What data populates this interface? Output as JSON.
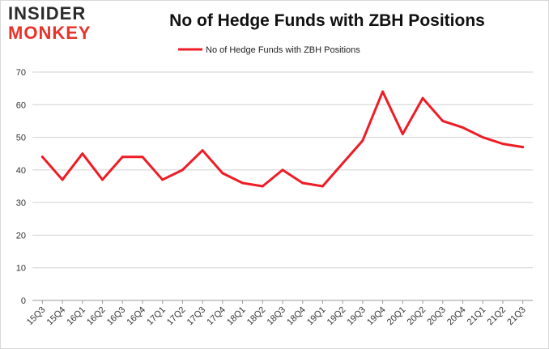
{
  "logo": {
    "line1": "INSIDER",
    "line2": "MONKEY"
  },
  "colors": {
    "series": "#ee1c25",
    "grid": "#d0d0d0",
    "logo_red": "#e8332a"
  },
  "chart_data": {
    "type": "line",
    "title": "No of Hedge Funds with ZBH Positions",
    "xlabel": "",
    "ylabel": "",
    "ylim": [
      0,
      70
    ],
    "yticks": [
      0,
      10,
      20,
      30,
      40,
      50,
      60,
      70
    ],
    "grid": true,
    "legend_position": "top-center",
    "categories": [
      "15Q3",
      "15Q4",
      "16Q1",
      "16Q2",
      "16Q3",
      "16Q4",
      "17Q1",
      "17Q2",
      "17Q3",
      "17Q4",
      "18Q1",
      "18Q2",
      "18Q3",
      "18Q4",
      "19Q1",
      "19Q2",
      "19Q3",
      "19Q4",
      "20Q1",
      "20Q2",
      "20Q3",
      "20Q4",
      "21Q1",
      "21Q2",
      "21Q3"
    ],
    "series": [
      {
        "name": "No of Hedge Funds with ZBH Positions",
        "values": [
          44,
          37,
          45,
          37,
          44,
          44,
          37,
          40,
          46,
          39,
          36,
          35,
          40,
          36,
          35,
          42,
          49,
          64,
          51,
          62,
          55,
          53,
          50,
          48,
          47
        ]
      }
    ]
  }
}
